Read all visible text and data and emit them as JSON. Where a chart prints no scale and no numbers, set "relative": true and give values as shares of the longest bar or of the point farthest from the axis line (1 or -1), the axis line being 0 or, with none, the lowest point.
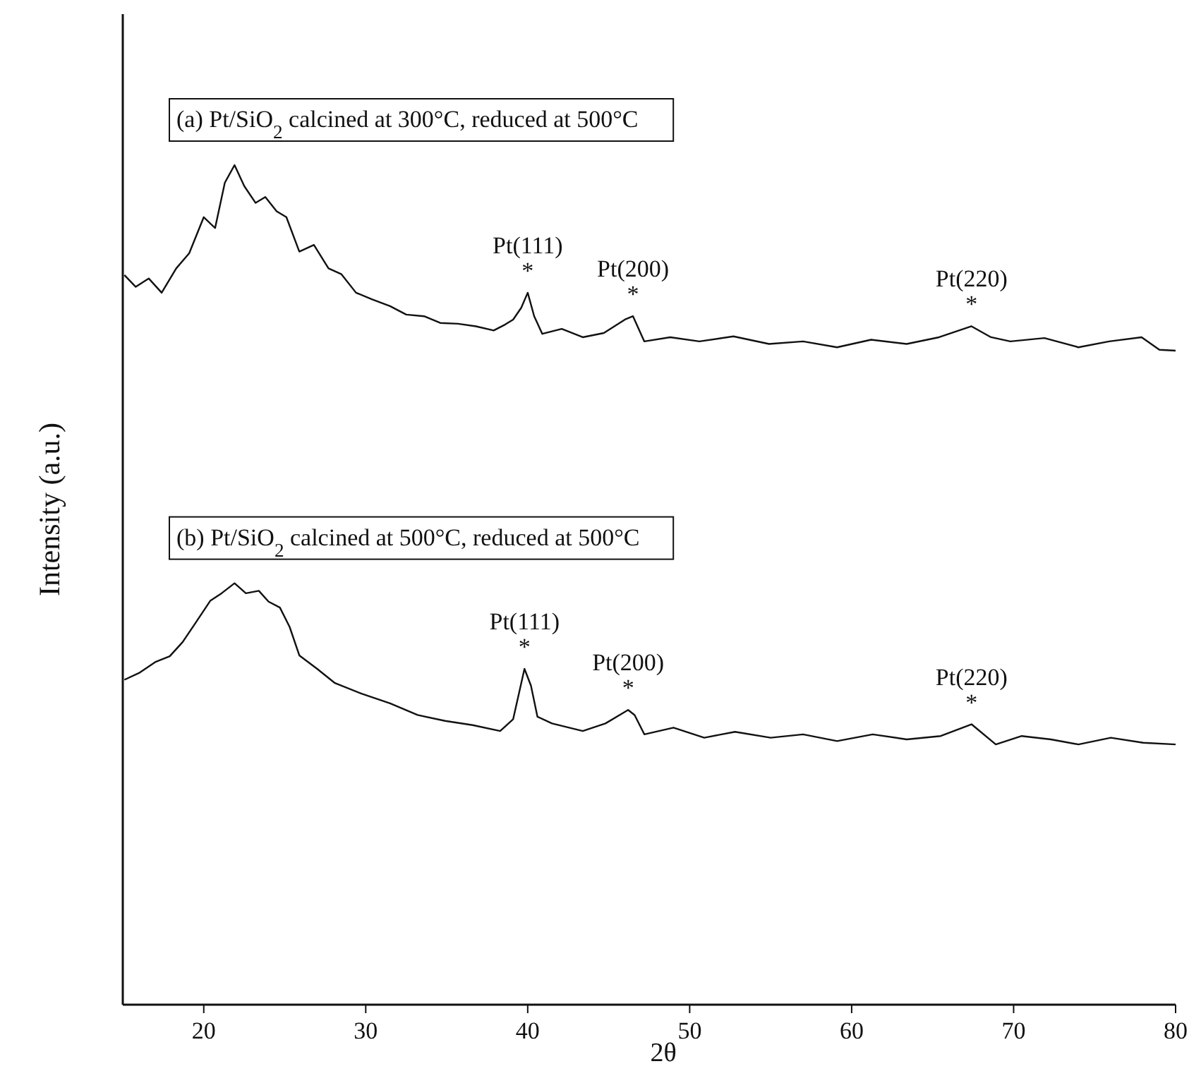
{
  "chart_data": {
    "type": "line",
    "relative": true,
    "xlabel": "2θ",
    "ylabel": "Intensity (a.u.)",
    "xlim": [
      15,
      80
    ],
    "xticks": [
      20,
      30,
      40,
      50,
      60,
      70,
      80
    ],
    "series": [
      {
        "name": "(a) Pt/SiO$_{2}$ calcined at 300°C, reduced at 500°C",
        "color": "#111111",
        "x": [
          15.1,
          15.8,
          16.6,
          17.4,
          18.3,
          19.1,
          20,
          20.7,
          21.3,
          21.9,
          22.5,
          23.2,
          23.8,
          24.5,
          25.1,
          25.9,
          26.8,
          27.7,
          28.5,
          29.4,
          30.4,
          31.5,
          32.5,
          33.6,
          34.6,
          35.7,
          36.8,
          37.9,
          38.6,
          39.1,
          39.6,
          40,
          40.4,
          40.9,
          42.1,
          43.4,
          44.7,
          46,
          46.5,
          47.2,
          48.8,
          50.6,
          52.7,
          54.9,
          57,
          59.1,
          61.2,
          63.4,
          65.4,
          67.4,
          68.6,
          69.8,
          71.9,
          74,
          75.9,
          77.9,
          79,
          80
        ],
        "values": [
          0.869,
          0.855,
          0.865,
          0.848,
          0.877,
          0.895,
          0.938,
          0.925,
          0.979,
          1,
          0.975,
          0.955,
          0.962,
          0.945,
          0.938,
          0.897,
          0.905,
          0.877,
          0.87,
          0.848,
          0.84,
          0.832,
          0.822,
          0.82,
          0.812,
          0.811,
          0.808,
          0.803,
          0.81,
          0.816,
          0.83,
          0.848,
          0.82,
          0.799,
          0.805,
          0.795,
          0.8,
          0.816,
          0.82,
          0.79,
          0.795,
          0.79,
          0.796,
          0.787,
          0.79,
          0.783,
          0.792,
          0.787,
          0.795,
          0.808,
          0.795,
          0.79,
          0.794,
          0.783,
          0.79,
          0.795,
          0.78,
          0.779
        ]
      },
      {
        "name": "(b) Pt/SiO$_{2}$ calcined at 500°C, reduced at 500°C",
        "color": "#111111",
        "x": [
          15.1,
          16,
          17,
          17.9,
          18.7,
          19.5,
          20.4,
          21.1,
          21.9,
          22.6,
          23.4,
          24,
          24.7,
          25.3,
          25.9,
          27,
          28.1,
          29.8,
          31.5,
          33.2,
          34.9,
          36.6,
          38.3,
          39.1,
          39.8,
          40.2,
          40.6,
          41.5,
          43.4,
          44.8,
          46.2,
          46.6,
          47.2,
          49,
          50.9,
          52.8,
          55,
          57,
          59.1,
          61.3,
          63.4,
          65.5,
          67.4,
          68.9,
          70.5,
          72.3,
          74,
          76,
          78,
          80
        ],
        "values": [
          0.387,
          0.395,
          0.408,
          0.415,
          0.432,
          0.455,
          0.481,
          0.49,
          0.502,
          0.49,
          0.493,
          0.48,
          0.473,
          0.45,
          0.416,
          0.4,
          0.383,
          0.37,
          0.359,
          0.345,
          0.338,
          0.333,
          0.326,
          0.34,
          0.4,
          0.38,
          0.343,
          0.335,
          0.326,
          0.335,
          0.351,
          0.345,
          0.322,
          0.33,
          0.318,
          0.325,
          0.318,
          0.322,
          0.314,
          0.322,
          0.316,
          0.32,
          0.334,
          0.31,
          0.32,
          0.316,
          0.31,
          0.318,
          0.312,
          0.31
        ]
      }
    ],
    "annotations": [
      {
        "text": "Pt(111)\n*",
        "x": 40,
        "y": 0.848
      },
      {
        "text": "Pt(200)\n*",
        "x": 46.5,
        "y": 0.82
      },
      {
        "text": "Pt(220)\n*",
        "x": 67.4,
        "y": 0.808
      },
      {
        "text": "Pt(111)\n*",
        "x": 39.8,
        "y": 0.4
      },
      {
        "text": "Pt(200)\n*",
        "x": 46.2,
        "y": 0.351
      },
      {
        "text": "Pt(220)\n*",
        "x": 67.4,
        "y": 0.334
      }
    ]
  }
}
